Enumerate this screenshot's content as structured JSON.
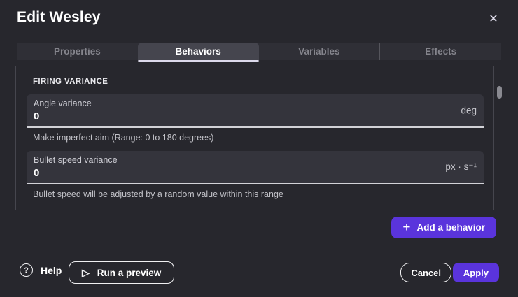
{
  "dialog": {
    "title": "Edit Wesley"
  },
  "icons": {
    "close": "✕",
    "plus": "+",
    "help": "?",
    "play": "▷"
  },
  "tabs": [
    {
      "label": "Properties",
      "active": false
    },
    {
      "label": "Behaviors",
      "active": true
    },
    {
      "label": "Variables",
      "active": false
    },
    {
      "label": "Effects",
      "active": false
    }
  ],
  "content": {
    "section_header": "FIRING VARIANCE",
    "fields": [
      {
        "label": "Angle variance",
        "value": "0",
        "unit": "deg",
        "helper": "Make imperfect aim (Range: 0 to 180 degrees)"
      },
      {
        "label": "Bullet speed variance",
        "value": "0",
        "unit": "px · s⁻¹",
        "helper": "Bullet speed will be adjusted by a random value within this range"
      }
    ],
    "add_behavior_label": "Add a behavior"
  },
  "footer": {
    "help_label": "Help",
    "run_preview_label": "Run a preview",
    "cancel_label": "Cancel",
    "apply_label": "Apply"
  },
  "colors": {
    "background": "#27272d",
    "tabbar_background": "#2f2f36",
    "active_tab_background": "#45454e",
    "card_background": "#34343c",
    "accent_purple": "#5a34dc",
    "text_primary": "#ffffff",
    "text_secondary": "#c3c3c9",
    "underline": "#d2d2d7"
  }
}
